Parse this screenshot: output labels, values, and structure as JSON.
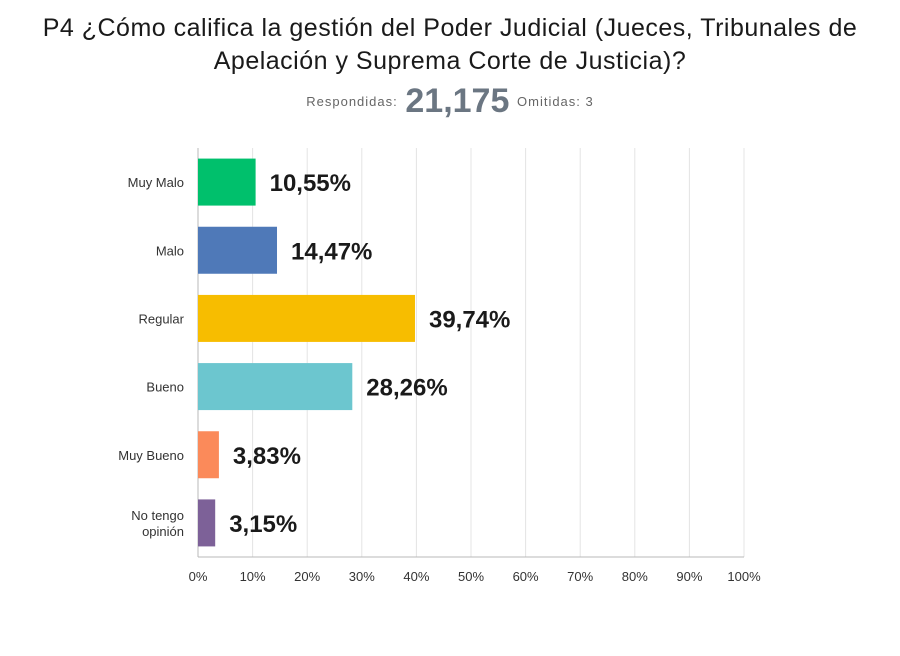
{
  "header": {
    "title": "P4 ¿Cómo califica la gestión del Poder Judicial (Jueces, Tribunales de Apelación y Suprema Corte de Justicia)?",
    "respondidas_label": "Respondidas:",
    "respondidas_value": "21,175",
    "omitidas_label": "Omitidas: 3"
  },
  "chart_data": {
    "type": "bar",
    "orientation": "horizontal",
    "categories": [
      "Muy Malo",
      "Malo",
      "Regular",
      "Bueno",
      "Muy Bueno",
      "No tengo opinión"
    ],
    "values": [
      10.55,
      14.47,
      39.74,
      28.26,
      3.83,
      3.15
    ],
    "value_labels": [
      "10,55%",
      "14,47%",
      "39,74%",
      "28,26%",
      "3,83%",
      "3,15%"
    ],
    "colors": [
      "#00c06c",
      "#4f79b8",
      "#f7bd00",
      "#6cc6cf",
      "#fb8a5a",
      "#7d6198"
    ],
    "xlim": [
      0,
      100
    ],
    "xticks": [
      "0%",
      "10%",
      "20%",
      "30%",
      "40%",
      "50%",
      "60%",
      "70%",
      "80%",
      "90%",
      "100%"
    ],
    "grid": true
  }
}
